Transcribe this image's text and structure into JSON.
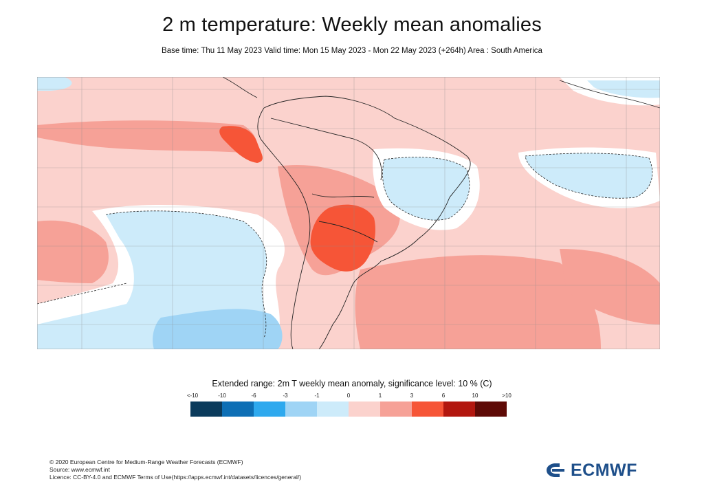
{
  "header": {
    "title": "2 m temperature: Weekly mean anomalies",
    "subtitle": "Base time: Thu 11 May 2023 Valid time: Mon 15 May 2023 - Mon 22 May 2023 (+264h) Area : South America"
  },
  "legend": {
    "title": "Extended range: 2m T weekly mean anomaly, significance level: 10 % (C)",
    "ticks": [
      "<-10",
      "-10",
      "-6",
      "-3",
      "-1",
      "0",
      "1",
      "3",
      "6",
      "10",
      ">10"
    ],
    "colors": [
      "#0b3b5c",
      "#0e6fb5",
      "#2ea9ee",
      "#9fd4f5",
      "#cdebfa",
      "#fbd2cd",
      "#f6a197",
      "#f65537",
      "#b2170f",
      "#5e0a06"
    ]
  },
  "footer": {
    "credit_lines": [
      "© 2020 European Centre for Medium-Range Weather Forecasts (ECMWF)",
      "Source: www.ecmwf.int",
      "Licence: CC-BY-4.0 and ECMWF Terms of Use(https://apps.ecmwf.int/datasets/licences/general/)"
    ],
    "logo_text": "ECMWF"
  }
}
